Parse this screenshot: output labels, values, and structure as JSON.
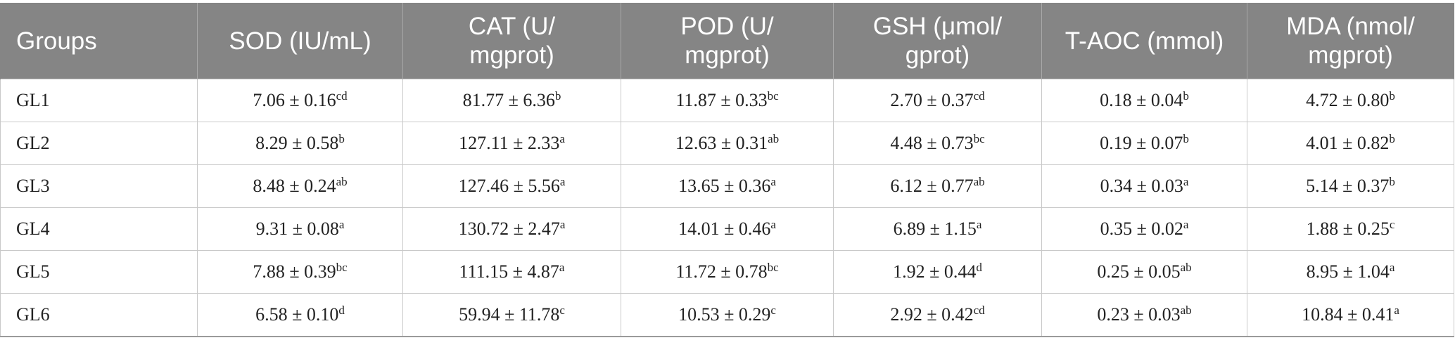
{
  "table": {
    "headers": [
      [
        "Groups"
      ],
      [
        "SOD (IU/mL)"
      ],
      [
        "CAT (U/",
        "mgprot)"
      ],
      [
        "POD (U/",
        "mgprot)"
      ],
      [
        "GSH (μmol/",
        "gprot)"
      ],
      [
        "T-AOC (mmol)"
      ],
      [
        "MDA (nmol/",
        "mgprot)"
      ]
    ],
    "rows": [
      {
        "group": "GL1",
        "cells": [
          {
            "value": "7.06 ± 0.16",
            "sup": "cd"
          },
          {
            "value": "81.77 ± 6.36",
            "sup": "b"
          },
          {
            "value": "11.87 ± 0.33",
            "sup": "bc"
          },
          {
            "value": "2.70 ± 0.37",
            "sup": "cd"
          },
          {
            "value": "0.18 ± 0.04",
            "sup": "b"
          },
          {
            "value": "4.72 ± 0.80",
            "sup": "b"
          }
        ]
      },
      {
        "group": "GL2",
        "cells": [
          {
            "value": "8.29 ± 0.58",
            "sup": "b"
          },
          {
            "value": "127.11 ± 2.33",
            "sup": "a"
          },
          {
            "value": "12.63 ± 0.31",
            "sup": "ab"
          },
          {
            "value": "4.48 ± 0.73",
            "sup": "bc"
          },
          {
            "value": "0.19 ± 0.07",
            "sup": "b"
          },
          {
            "value": "4.01 ± 0.82",
            "sup": "b"
          }
        ]
      },
      {
        "group": "GL3",
        "cells": [
          {
            "value": "8.48 ± 0.24",
            "sup": "ab"
          },
          {
            "value": "127.46 ± 5.56",
            "sup": "a"
          },
          {
            "value": "13.65 ± 0.36",
            "sup": "a"
          },
          {
            "value": "6.12 ± 0.77",
            "sup": "ab"
          },
          {
            "value": "0.34 ± 0.03",
            "sup": "a"
          },
          {
            "value": "5.14 ± 0.37",
            "sup": "b"
          }
        ]
      },
      {
        "group": "GL4",
        "cells": [
          {
            "value": "9.31 ± 0.08",
            "sup": "a"
          },
          {
            "value": "130.72 ± 2.47",
            "sup": "a"
          },
          {
            "value": "14.01 ± 0.46",
            "sup": "a"
          },
          {
            "value": "6.89 ± 1.15",
            "sup": "a"
          },
          {
            "value": "0.35 ± 0.02",
            "sup": "a"
          },
          {
            "value": "1.88 ± 0.25",
            "sup": "c"
          }
        ]
      },
      {
        "group": "GL5",
        "cells": [
          {
            "value": "7.88 ± 0.39",
            "sup": "bc"
          },
          {
            "value": "111.15 ± 4.87",
            "sup": "a"
          },
          {
            "value": "11.72 ± 0.78",
            "sup": "bc"
          },
          {
            "value": "1.92 ± 0.44",
            "sup": "d"
          },
          {
            "value": "0.25 ± 0.05",
            "sup": "ab"
          },
          {
            "value": "8.95 ± 1.04",
            "sup": "a"
          }
        ]
      },
      {
        "group": "GL6",
        "cells": [
          {
            "value": "6.58 ± 0.10",
            "sup": "d"
          },
          {
            "value": "59.94 ± 11.78",
            "sup": "c"
          },
          {
            "value": "10.53 ± 0.29",
            "sup": "c"
          },
          {
            "value": "2.92 ± 0.42",
            "sup": "cd"
          },
          {
            "value": "0.23 ± 0.03",
            "sup": "ab"
          },
          {
            "value": "10.84 ± 0.41",
            "sup": "a"
          }
        ]
      }
    ]
  },
  "colors": {
    "header_background": "#858585",
    "header_text": "#ffffff",
    "grid_line": "#c9c9c9"
  }
}
